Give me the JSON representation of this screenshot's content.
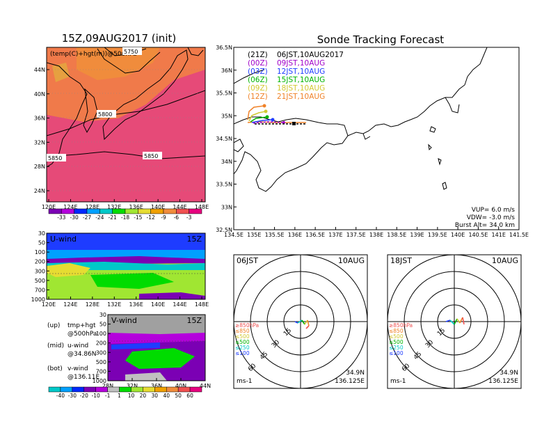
{
  "left": {
    "title": "15Z,09AUG2017 (init)",
    "map_label": "(temp(C)+hgt(m))@500hPa",
    "contours": [
      "5750",
      "5800",
      "5850",
      "5850"
    ],
    "lat_ticks": [
      "44N",
      "40N",
      "36N",
      "32N",
      "28N",
      "24N"
    ],
    "lon_ticks": [
      "120E",
      "124E",
      "128E",
      "132E",
      "136E",
      "140E",
      "144E",
      "148E"
    ],
    "temp_cbar": [
      "-33",
      "-30",
      "-27",
      "-24",
      "-21",
      "-18",
      "-15",
      "-12",
      "-9",
      "-6",
      "-3"
    ],
    "temp_colors": [
      "#7b00b4",
      "#b400dc",
      "#0028ff",
      "#00a0ff",
      "#00c8c8",
      "#00dc00",
      "#a0e632",
      "#e6dc32",
      "#f0a000",
      "#f08c3c",
      "#f05050",
      "#e6007e"
    ],
    "uwind": {
      "label": "U-wind",
      "time": "15Z",
      "p_ticks": [
        "30",
        "50",
        "100",
        "200",
        "300",
        "500",
        "700",
        "1000"
      ],
      "lon_ticks": [
        "120E",
        "124E",
        "128E",
        "132E",
        "136E",
        "140E",
        "144E",
        "148E"
      ]
    },
    "vwind": {
      "label": "V-wind",
      "time": "15Z",
      "p_ticks": [
        "30",
        "50",
        "100",
        "200",
        "300",
        "500",
        "700",
        "1000"
      ],
      "lat_ticks": [
        "28N",
        "32N",
        "36N",
        "40N",
        "44N"
      ]
    },
    "wind_cbar": [
      "-40",
      "-30",
      "-20",
      "-10",
      "-1",
      "1",
      "10",
      "20",
      "30",
      "40",
      "50",
      "60"
    ],
    "wind_colors": [
      "#00c8c8",
      "#00a0ff",
      "#0028ff",
      "#7b00b4",
      "#b400dc",
      "#c0c0c0",
      "#00dc00",
      "#a0e632",
      "#e6dc32",
      "#f0a000",
      "#f08c3c",
      "#f05050",
      "#e6007e"
    ],
    "legend": [
      {
        "k": "(up)",
        "a": "tmp+hgt",
        "b": "@500hPa"
      },
      {
        "k": "(mid)",
        "a": "u-wind",
        "b": "@34.86N"
      },
      {
        "k": "(bot)",
        "a": "v-wind",
        "b": "@136.11E"
      }
    ]
  },
  "track": {
    "title": "Sonde Tracking Forecast",
    "lat_ticks": [
      "36.5N",
      "36N",
      "35.5N",
      "35N",
      "34.5N",
      "34N",
      "33.5N",
      "33N",
      "32.5N"
    ],
    "lon_ticks": [
      "134.5E",
      "135E",
      "135.5E",
      "136E",
      "136.5E",
      "137E",
      "137.5E",
      "138E",
      "138.5E",
      "139E",
      "139.5E",
      "140E",
      "140.5E",
      "141E",
      "141.5E"
    ],
    "legend": [
      {
        "utc": "(21Z)",
        "text": "06JST,10AUG2017",
        "color": "#000000"
      },
      {
        "utc": "(00Z)",
        "text": "09JST,10AUG",
        "color": "#a000c8"
      },
      {
        "utc": "(03Z)",
        "text": "12JST,10AUG",
        "color": "#1e3cff"
      },
      {
        "utc": "(06Z)",
        "text": "15JST,10AUG",
        "color": "#00b400"
      },
      {
        "utc": "(09Z)",
        "text": "18JST,10AUG",
        "color": "#d2c832"
      },
      {
        "utc": "(12Z)",
        "text": "21JST,10AUG",
        "color": "#f08228"
      }
    ],
    "params": [
      "VUP=  6.0 m/s",
      "VDW= -3.0 m/s",
      "Burst Alt= 34.0 km"
    ]
  },
  "hodo": [
    {
      "time": "06JST",
      "date": "10AUG",
      "lat": "34.9N",
      "lon": "136.125E",
      "unit": "ms-1",
      "rings": [
        "15",
        "30",
        "45",
        "60"
      ]
    },
    {
      "time": "18JST",
      "date": "10AUG",
      "lat": "34.9N",
      "lon": "136.125E",
      "unit": "ms-1",
      "rings": [
        "15",
        "30",
        "45",
        "60"
      ]
    }
  ],
  "hodo_legend": [
    {
      "text": "≥850hPa",
      "color": "#f05050"
    },
    {
      "text": "≤850",
      "color": "#f08228"
    },
    {
      "text": "≤500",
      "color": "#d2c832"
    },
    {
      "text": "≤500",
      "color": "#00b400"
    },
    {
      "text": "≤250",
      "color": "#00c8c8"
    },
    {
      "text": "≤100",
      "color": "#1e3cff"
    }
  ]
}
